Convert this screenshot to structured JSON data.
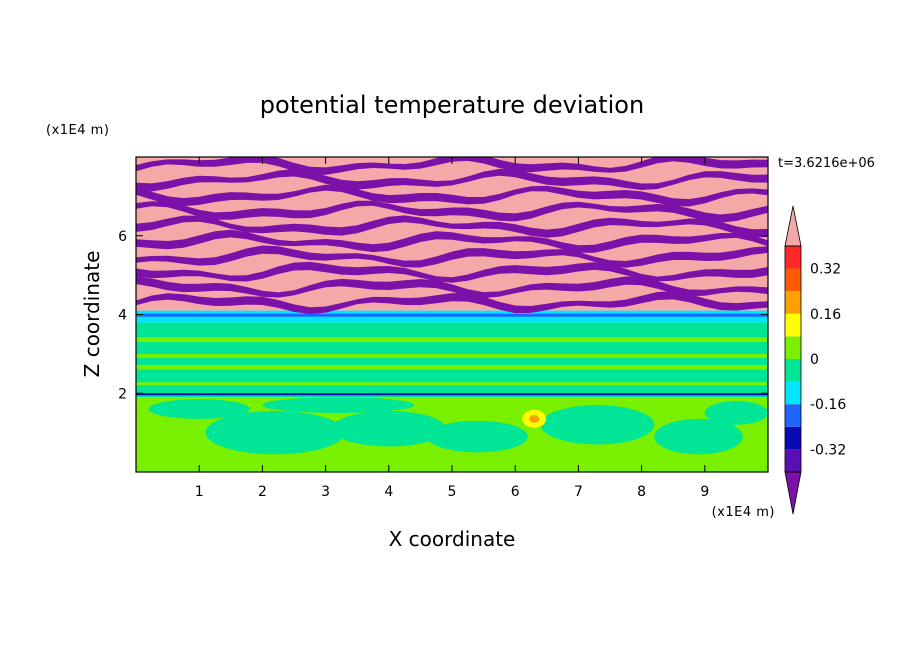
{
  "chart_data": {
    "type": "heatmap",
    "title": "potential temperature deviation",
    "xlabel": "X coordinate",
    "ylabel": "Z coordinate",
    "x_unit": "(x1E4 m)",
    "y_unit": "(x1E4 m)",
    "time_label": "t=3.6216e+06",
    "xlim": [
      0,
      10
    ],
    "ylim": [
      0,
      8
    ],
    "x_ticks": [
      1,
      2,
      3,
      4,
      5,
      6,
      7,
      8,
      9
    ],
    "y_ticks": [
      2,
      4,
      6
    ],
    "colorbar": {
      "levels": [
        -0.4,
        -0.32,
        -0.24,
        -0.16,
        -0.08,
        0,
        0.08,
        0.16,
        0.24,
        0.32,
        0.4
      ],
      "tick_labels": [
        "0.32",
        "0.16",
        "0",
        "-0.16",
        "-0.32"
      ],
      "tick_values": [
        0.32,
        0.16,
        0,
        -0.16,
        -0.32
      ],
      "colors_low_to_high": [
        "#7b11a8",
        "#5a0fb4",
        "#0a0ab4",
        "#1e64ff",
        "#00e6ff",
        "#00e696",
        "#78f000",
        "#ffff00",
        "#ffa000",
        "#ff5a00",
        "#ff2828",
        "#f4a8a8"
      ],
      "extend": "both"
    },
    "layers": [
      {
        "z_range": [
          0,
          1.9
        ],
        "dominant": "#78f000",
        "secondary": "#00e696",
        "description_value": "~0 to 0.08"
      },
      {
        "z_range": [
          1.9,
          3.8
        ],
        "dominant": "#00e696",
        "secondary": "#78f000",
        "description_value": "~0"
      },
      {
        "z_range": [
          3.8,
          4.1
        ],
        "dominant": "#00e6ff",
        "secondary": "#1e64ff",
        "description_value": "~-0.1"
      },
      {
        "z_range": [
          4.1,
          8.0
        ],
        "dominant_bands": [
          "#f4a8a8",
          "#7b11a8"
        ],
        "description_value": "alternating >0.4 and <-0.4"
      }
    ]
  }
}
